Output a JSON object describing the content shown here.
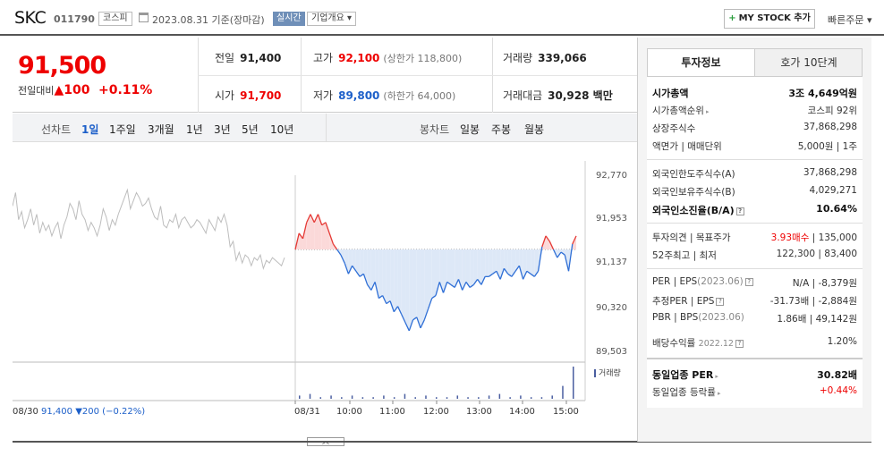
{
  "header": {
    "name": "SKC",
    "code": "011790",
    "market": "코스피",
    "date": "2023.08.31 기준(장마감)",
    "realtime": "실시간",
    "company": "기업개요",
    "mystock": "MY STOCK 추가",
    "quick": "빠른주문"
  },
  "price": {
    "current": "91,500",
    "change_label": "전일대비",
    "change": "100",
    "change_pct": "+0.11%",
    "prev_label": "전일",
    "prev": "91,400",
    "high_label": "고가",
    "high": "92,100",
    "upper_limit": "(상한가 118,800)",
    "volume_label": "거래량",
    "volume": "339,066",
    "open_label": "시가",
    "open": "91,700",
    "low_label": "저가",
    "low": "89,800",
    "lower_limit": "(하한가 64,000)",
    "amount_label": "거래대금",
    "amount": "30,928 백만"
  },
  "periods": {
    "line_label": "선차트",
    "line": [
      "1일",
      "1주일",
      "3개월",
      "1년",
      "3년",
      "5년",
      "10년"
    ],
    "candle_label": "봉차트",
    "candle": [
      "일봉",
      "주봉",
      "월봉"
    ]
  },
  "chart_data": {
    "type": "line",
    "ylabels": [
      "92,770",
      "91,953",
      "91,137",
      "90,320",
      "89,503"
    ],
    "xlabels": [
      "08/30",
      "08/31",
      "10:00",
      "11:00",
      "12:00",
      "13:00",
      "14:00",
      "15:00"
    ],
    "prev_close": 91400,
    "legend": "거래량",
    "prev_summary": {
      "date": "08/30",
      "close": "91,400",
      "change": "▼200",
      "pct": "(−0.22%)"
    },
    "ylim": [
      89503,
      92770
    ],
    "prev_day_series": [
      92200,
      92450,
      91950,
      92100,
      91800,
      91950,
      92150,
      91850,
      92050,
      91700,
      91900,
      91750,
      91850,
      91650,
      91800,
      91900,
      91600,
      91850,
      92000,
      92250,
      92150,
      91950,
      92300,
      92050,
      91950,
      91750,
      91900,
      91800,
      91650,
      91850,
      92150,
      92000,
      91750,
      91950,
      91850,
      92050,
      92200,
      92350,
      92500,
      92150,
      92300,
      92450,
      92350,
      92200,
      92250,
      92350,
      92150,
      92000,
      91950,
      92200,
      91850,
      91800,
      91950,
      91900,
      92050,
      91800,
      91950,
      92000,
      91900,
      91800,
      91850,
      91950,
      91900,
      91800,
      91700,
      91950,
      91850,
      91750,
      92000,
      91900,
      92050,
      91850,
      91450,
      91550,
      91200,
      91350,
      91150,
      91300,
      91250,
      91100,
      91250,
      91200,
      91300,
      91050,
      91200,
      91150,
      91250,
      91200,
      91150,
      91100,
      91250
    ],
    "today_series": [
      91400,
      91700,
      91600,
      91900,
      92050,
      91900,
      92050,
      91850,
      91900,
      91700,
      91500,
      91400,
      91300,
      91150,
      90950,
      91100,
      91000,
      90900,
      90950,
      90750,
      90650,
      90800,
      90500,
      90550,
      90400,
      90450,
      90250,
      90350,
      90200,
      90050,
      89900,
      90100,
      90150,
      89950,
      90100,
      90300,
      90500,
      90550,
      90800,
      90600,
      90800,
      90750,
      90700,
      90850,
      90650,
      90800,
      90700,
      90750,
      90850,
      90750,
      90900,
      90900,
      90950,
      91000,
      90850,
      91050,
      90950,
      90900,
      91000,
      91100,
      90850,
      91000,
      90950,
      90900,
      91000,
      91450,
      91650,
      91550,
      91400,
      91250,
      91350,
      91300,
      91000,
      91500,
      91650
    ],
    "volume_bars": [
      2,
      3,
      1,
      2,
      1,
      2,
      1,
      1,
      2,
      1,
      3,
      1,
      2,
      1,
      1,
      2,
      1,
      1,
      2,
      3,
      1,
      2,
      1,
      1,
      2,
      8,
      20
    ]
  },
  "panel": {
    "tab_info": "투자정보",
    "tab_quote": "호가 10단계",
    "rows1": [
      {
        "label": "시가총액",
        "value": "3조 4,649억원",
        "bold": true
      },
      {
        "label": "시가총액순위",
        "value": "코스피 92위",
        "arrow": true
      },
      {
        "label": "상장주식수",
        "value": "37,868,298"
      },
      {
        "label": "액면가 | 매매단위",
        "value": "5,000원 | 1주"
      }
    ],
    "rows2": [
      {
        "label": "외국인한도주식수(A)",
        "value": "37,868,298"
      },
      {
        "label": "외국인보유주식수(B)",
        "value": "4,029,271"
      },
      {
        "label": "외국인소진율(B/A)",
        "value": "10.64%",
        "bold": true,
        "q": true
      }
    ],
    "rows3": [
      {
        "label": "투자의견 | 목표주가",
        "value_red": "3.93매수",
        "value": "135,000"
      },
      {
        "label": "52주최고 | 최저",
        "value": "122,300 | 83,400"
      }
    ],
    "rows4": [
      {
        "label": "PER | EPS",
        "sub": "(2023.06)",
        "value": "N/A | -8,379원",
        "q": true
      },
      {
        "label": "추정PER | EPS",
        "value": "-31.73배 | -2,884원",
        "q": true
      },
      {
        "label": "PBR | BPS",
        "sub": "(2023.06)",
        "value": "1.86배 | 49,142원"
      },
      {
        "label": "배당수익률",
        "sub": "2022.12",
        "value": "1.20%",
        "q": true
      }
    ],
    "rows5": [
      {
        "label": "동일업종 PER",
        "value": "30.82배",
        "bold": true,
        "arrow": true
      },
      {
        "label": "동일업종 등락률",
        "value_red": "+0.44%",
        "arrow": true
      }
    ]
  }
}
